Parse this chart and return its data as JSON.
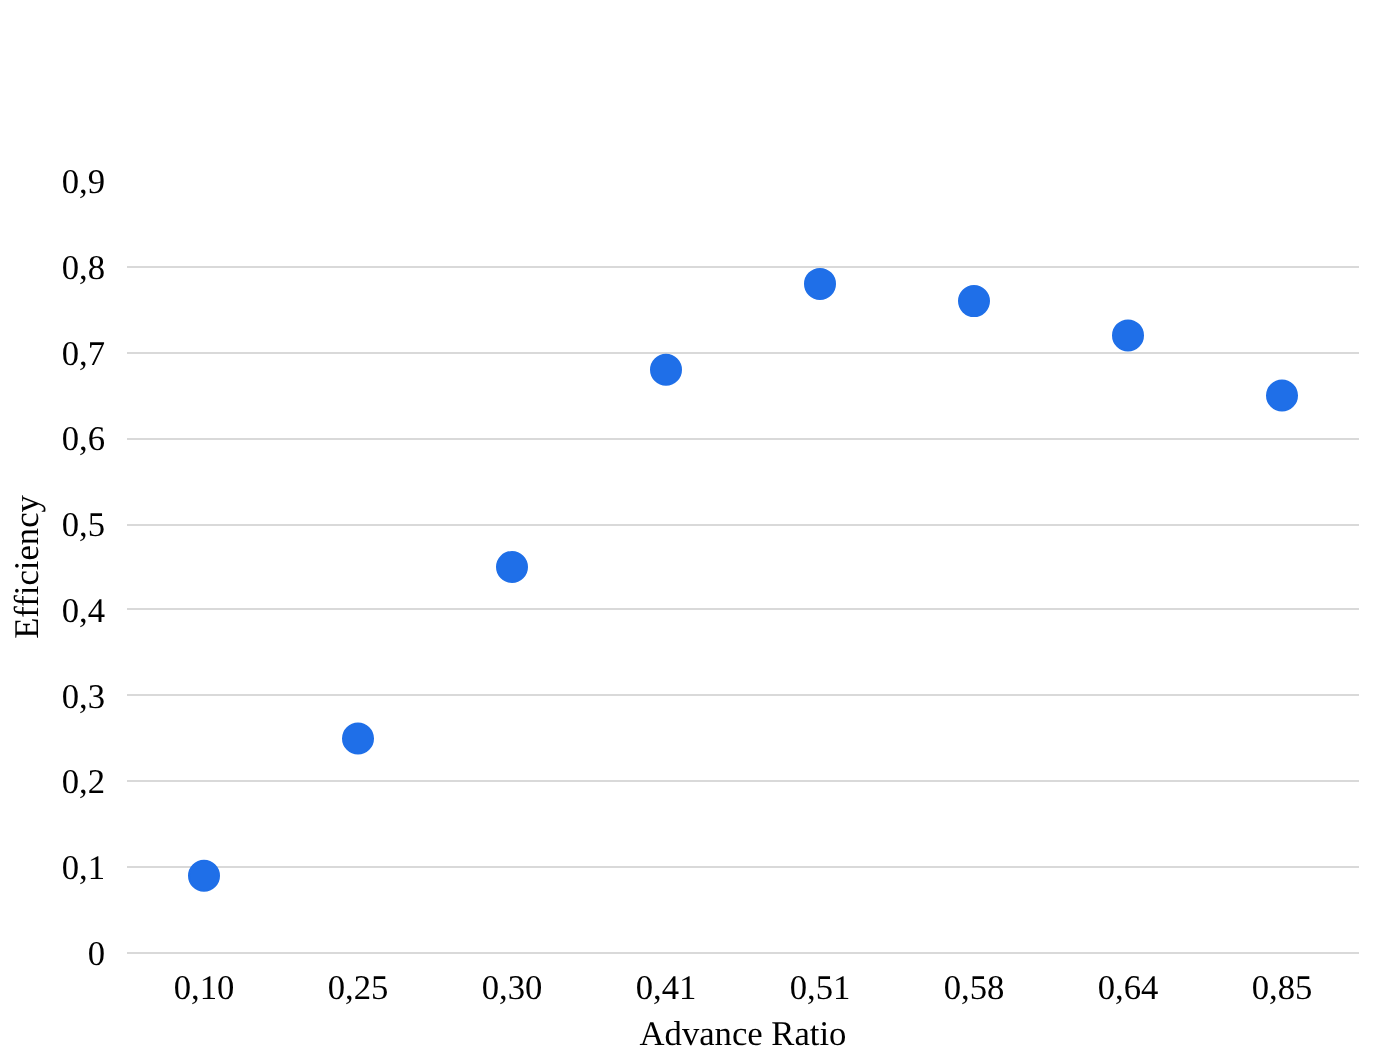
{
  "chart_data": {
    "type": "scatter",
    "xlabel": "Advance Ratio",
    "ylabel": "Efficiency",
    "categories": [
      "0,10",
      "0,25",
      "0,30",
      "0,41",
      "0,51",
      "0,58",
      "0,64",
      "0,85"
    ],
    "values": [
      0.09,
      0.25,
      0.45,
      0.68,
      0.78,
      0.76,
      0.72,
      0.65
    ],
    "color": "#1f6fe8",
    "marker": "circle",
    "grid": "y",
    "ylim": [
      0,
      0.9
    ],
    "yticks": [
      0,
      {
        "value": 0.1,
        "label": "0,1"
      },
      {
        "value": 0.2,
        "label": "0,2"
      },
      {
        "value": 0.3,
        "label": "0,3"
      },
      {
        "value": 0.4,
        "label": "0,4"
      },
      {
        "value": 0.5,
        "label": "0,5"
      },
      {
        "value": 0.6,
        "label": "0,6"
      },
      {
        "value": 0.7,
        "label": "0,7"
      },
      {
        "value": 0.8,
        "label": "0,8"
      },
      {
        "value": 0.9,
        "label": "0,9"
      }
    ]
  }
}
